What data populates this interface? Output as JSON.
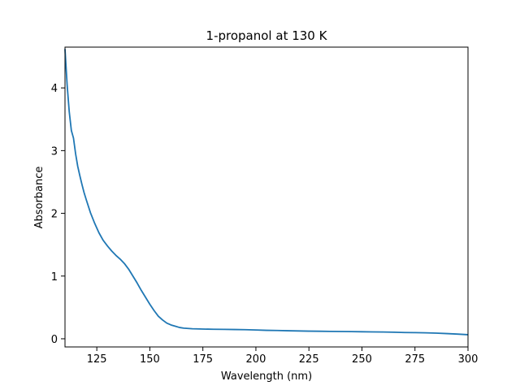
{
  "chart_data": {
    "type": "line",
    "title": "1-propanol at 130 K",
    "xlabel": "Wavelength (nm)",
    "ylabel": "Absorbance",
    "xlim": [
      110,
      300
    ],
    "ylim": [
      -0.13,
      4.65
    ],
    "xticks": [
      125,
      150,
      175,
      200,
      225,
      250,
      275,
      300
    ],
    "yticks": [
      0,
      1,
      2,
      3,
      4
    ],
    "grid": false,
    "legend": "none",
    "line_color": "#1f77b4",
    "series": [
      {
        "x": [
          110,
          111,
          112,
          113,
          114,
          115,
          116,
          117,
          118,
          119,
          120,
          122,
          124,
          126,
          128,
          130,
          132,
          134,
          136,
          138,
          140,
          142,
          144,
          146,
          148,
          150,
          152,
          154,
          156,
          158,
          160,
          162,
          164,
          166,
          168,
          170,
          172,
          175,
          180,
          185,
          190,
          195,
          200,
          205,
          210,
          215,
          220,
          225,
          230,
          235,
          240,
          245,
          250,
          255,
          260,
          265,
          270,
          275,
          280,
          285,
          290,
          295,
          300
        ],
        "y": [
          4.62,
          4.05,
          3.62,
          3.32,
          3.2,
          2.95,
          2.75,
          2.6,
          2.46,
          2.33,
          2.22,
          2.01,
          1.84,
          1.69,
          1.57,
          1.48,
          1.4,
          1.33,
          1.27,
          1.2,
          1.11,
          1.0,
          0.89,
          0.77,
          0.66,
          0.55,
          0.45,
          0.36,
          0.3,
          0.25,
          0.22,
          0.2,
          0.18,
          0.17,
          0.165,
          0.16,
          0.158,
          0.155,
          0.152,
          0.15,
          0.148,
          0.145,
          0.14,
          0.135,
          0.132,
          0.128,
          0.125,
          0.122,
          0.12,
          0.118,
          0.116,
          0.114,
          0.112,
          0.11,
          0.108,
          0.105,
          0.1,
          0.098,
          0.095,
          0.09,
          0.083,
          0.075,
          0.065
        ]
      }
    ]
  }
}
